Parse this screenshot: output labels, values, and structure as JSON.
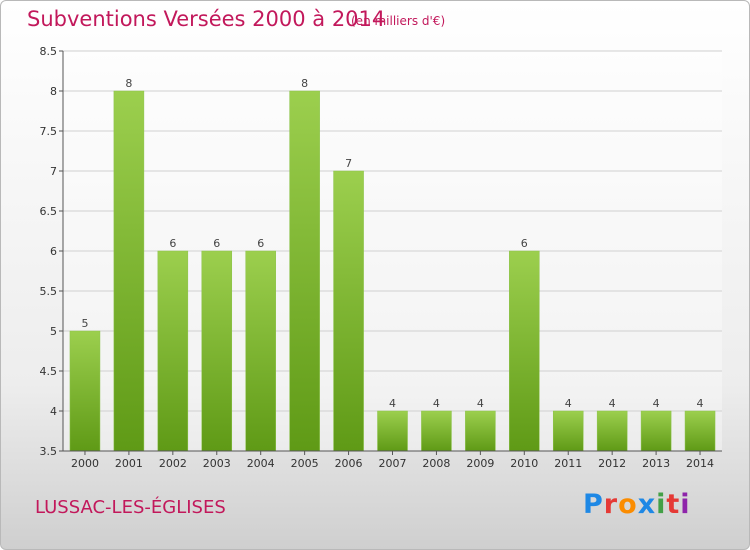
{
  "header": {
    "title": "Subventions Versées 2000 à 2014",
    "subtitle": "(en milliers d'€)"
  },
  "footer": {
    "commune": "LUSSAC-LES-ÉGLISES",
    "logo": "Proxiti",
    "logo_colors": [
      "#1e88e5",
      "#e53935",
      "#fb8c00",
      "#1e88e5",
      "#43a047",
      "#e53935",
      "#8e24aa"
    ]
  },
  "colors": {
    "title": "#c2185b",
    "bar_top": "#9ccf4e",
    "bar_bottom": "#5f9a16",
    "grid": "#d0d0d0"
  },
  "chart_data": {
    "type": "bar",
    "title": "Subventions Versées 2000 à 2014",
    "subtitle": "(en milliers d'€)",
    "categories": [
      "2000",
      "2001",
      "2002",
      "2003",
      "2004",
      "2005",
      "2006",
      "2007",
      "2008",
      "2009",
      "2010",
      "2011",
      "2012",
      "2013",
      "2014"
    ],
    "values": [
      5,
      8,
      6,
      6,
      6,
      8,
      7,
      4,
      4,
      4,
      6,
      4,
      4,
      4,
      4
    ],
    "data_labels": [
      "5",
      "8",
      "6",
      "6",
      "6",
      "8",
      "7",
      "4",
      "4",
      "4",
      "6",
      "4",
      "4",
      "4",
      "4"
    ],
    "ylim": [
      3.5,
      8.5
    ],
    "yticks": [
      3.5,
      4,
      4.5,
      5,
      5.5,
      6,
      6.5,
      7,
      7.5,
      8,
      8.5
    ],
    "ytick_labels": [
      "3.5",
      "4",
      "4.5",
      "5",
      "5.5",
      "6",
      "6.5",
      "7",
      "7.5",
      "8",
      "8.5"
    ],
    "grid": true,
    "legend": "none"
  }
}
